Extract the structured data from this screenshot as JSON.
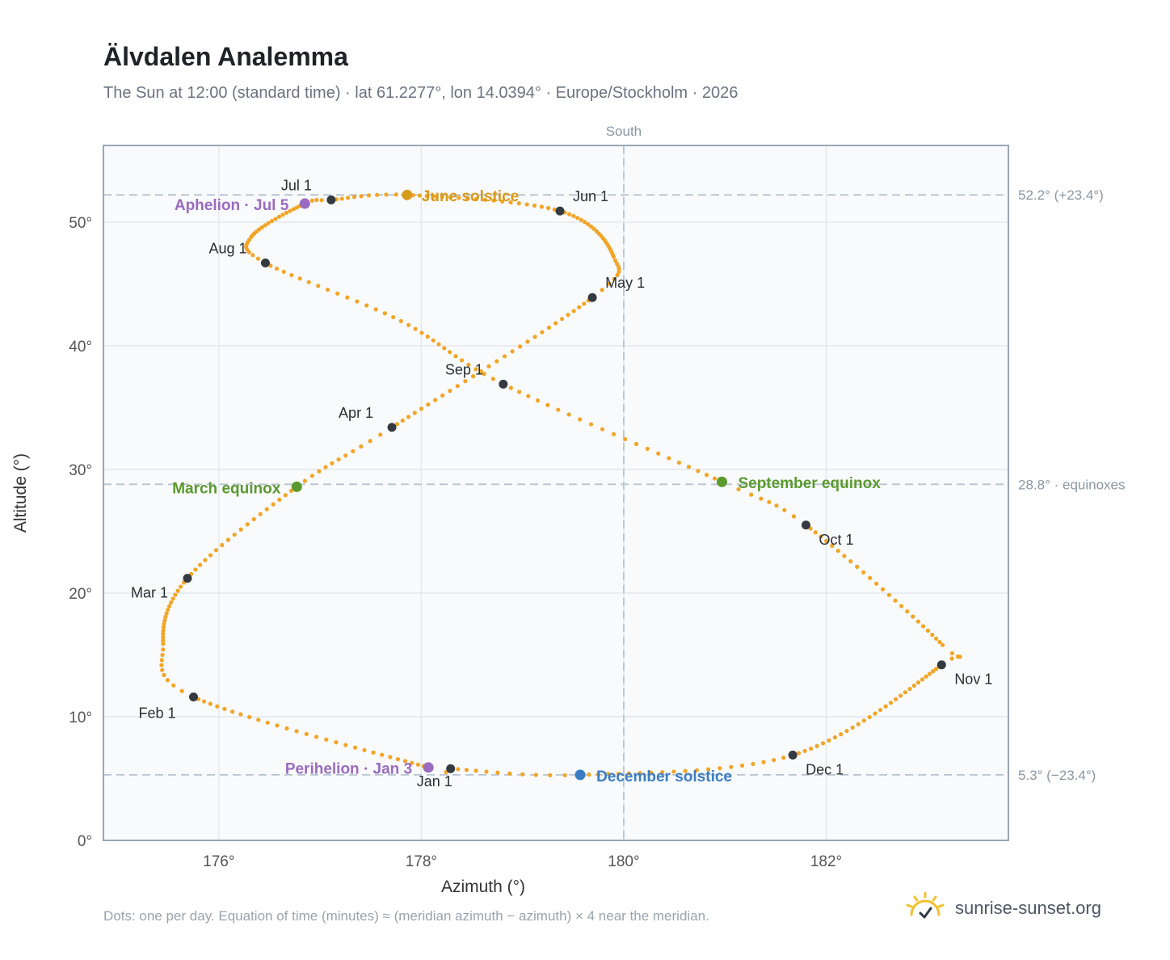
{
  "title": "Älvdalen Analemma",
  "subtitle": "The Sun at 12:00 (standard time) · lat 61.2277°, lon 14.0394° · Europe/Stockholm · 2026",
  "footnote": "Dots: one per day. Equation of time (minutes) ≈ (meridian azimuth − azimuth) × 4 near the meridian.",
  "brand": {
    "text": "sunrise-sunset.org",
    "icon": "sun-logo-icon"
  },
  "colors": {
    "curve": "#f2a526",
    "month_marker": "#343a40",
    "solstice_june": "#d89a1a",
    "solstice_december": "#3b7dc4",
    "equinox": "#5a9a2e",
    "apsis": "#9a6bc0",
    "reference_line": "#b8c4d0",
    "plot_bg": "#f8fafc"
  },
  "chart_data": {
    "type": "scatter",
    "xlabel": "Azimuth (°)",
    "ylabel": "Altitude (°)",
    "xlim": [
      174.86,
      183.8
    ],
    "ylim": [
      0,
      56.2
    ],
    "x_ticks": [
      176,
      178,
      180,
      182
    ],
    "x_tick_labels": [
      "176°",
      "178°",
      "180°",
      "182°"
    ],
    "y_ticks": [
      0,
      10,
      20,
      30,
      40,
      50
    ],
    "y_tick_labels": [
      "0°",
      "10°",
      "20°",
      "30°",
      "40°",
      "50°"
    ],
    "grid": true,
    "meridian": {
      "azimuth": 180,
      "label": "South"
    },
    "reference_lines": [
      {
        "altitude": 52.2,
        "label": "52.2° (+23.4°)"
      },
      {
        "altitude": 28.8,
        "label": "28.8° · equinoxes"
      },
      {
        "altitude": 5.3,
        "label": "5.3° (−23.4°)"
      }
    ],
    "series_note": "one dot per day of 2026, passing through the dated points below",
    "months": [
      {
        "label": "Jan 1",
        "az": 178.29,
        "alt": 5.8
      },
      {
        "label": "Feb 1",
        "az": 175.75,
        "alt": 11.6
      },
      {
        "label": "Mar 1",
        "az": 175.69,
        "alt": 21.2
      },
      {
        "label": "Apr 1",
        "az": 177.71,
        "alt": 33.4
      },
      {
        "label": "May 1",
        "az": 179.69,
        "alt": 43.9
      },
      {
        "label": "Jun 1",
        "az": 179.37,
        "alt": 50.9
      },
      {
        "label": "Jul 1",
        "az": 177.11,
        "alt": 51.8
      },
      {
        "label": "Aug 1",
        "az": 176.46,
        "alt": 46.7
      },
      {
        "label": "Sep 1",
        "az": 178.81,
        "alt": 36.9
      },
      {
        "label": "Oct 1",
        "az": 181.8,
        "alt": 25.5
      },
      {
        "label": "Nov 1",
        "az": 183.14,
        "alt": 14.2
      },
      {
        "label": "Dec 1",
        "az": 181.67,
        "alt": 6.9
      }
    ],
    "events": [
      {
        "label": "June solstice",
        "az": 177.86,
        "alt": 52.2,
        "kind": "solstice_june"
      },
      {
        "label": "December solstice",
        "az": 179.57,
        "alt": 5.3,
        "kind": "solstice_december"
      },
      {
        "label": "March equinox",
        "az": 176.77,
        "alt": 28.6,
        "kind": "equinox"
      },
      {
        "label": "September equinox",
        "az": 180.97,
        "alt": 29.0,
        "kind": "equinox"
      },
      {
        "label": "Aphelion · Jul 5",
        "az": 176.85,
        "alt": 51.5,
        "kind": "apsis"
      },
      {
        "label": "Perihelion · Jan 3",
        "az": 178.07,
        "alt": 5.9,
        "kind": "apsis"
      }
    ]
  }
}
